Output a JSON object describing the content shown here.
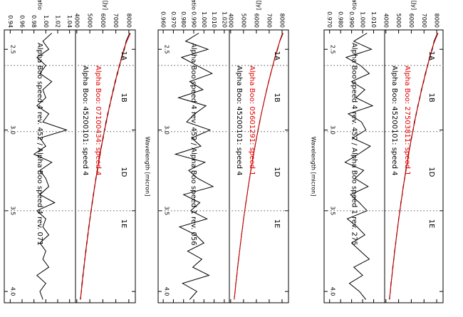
{
  "chart_data": [
    {
      "type": "line",
      "x": [
        2.4,
        2.45,
        2.5,
        2.55,
        2.6,
        2.65,
        2.7,
        2.75,
        2.8,
        2.85,
        2.9,
        2.95,
        3.0,
        3.05,
        3.1,
        3.15,
        3.2,
        3.25,
        3.3,
        3.35,
        3.4,
        3.45,
        3.5,
        3.55,
        3.6,
        3.65,
        3.7,
        3.75,
        3.8,
        3.85,
        3.9,
        3.95,
        4.0,
        4.05
      ],
      "xlim": [
        2.38,
        4.07
      ],
      "xticks": [
        2.5,
        {
          "value": 3.0,
          "label": "3.0"
        },
        3.5,
        {
          "value": 4.0,
          "label": "4.0"
        }
      ],
      "band_edges": [
        2.6,
        3.01,
        3.5
      ],
      "band_labels": [
        {
          "label": "1A",
          "x": 2.54
        },
        {
          "label": "1B",
          "x": 2.8
        },
        {
          "label": "1D",
          "x": 3.26
        },
        {
          "label": "1E",
          "x": 3.58
        }
      ],
      "flux": {
        "ylabel": "Flux [Jy]",
        "ylim": [
          3900,
          8500
        ],
        "yticks": [
          4000,
          5000,
          6000,
          7000,
          8000
        ],
        "series": [
          {
            "name": "Alpha Boo: 45200101: speed 4",
            "color": "#000000",
            "values": [
              8060,
              7790,
              7660,
              7430,
              7300,
              7100,
              6980,
              6790,
              6680,
              6510,
              6400,
              6240,
              6150,
              6000,
              5910,
              5770,
              5690,
              5560,
              5480,
              5360,
              5290,
              5175,
              5110,
              5000,
              4940,
              4835,
              4780,
              4680,
              4630,
              4535,
              4490,
              4395,
              4355,
              4265
            ]
          },
          {
            "name": "Alpha Boo: 07100434: speed 4",
            "color": "#e00000",
            "values": [
              8130,
              7850,
              7600,
              7490,
              7250,
              7150,
              6930,
              6840,
              6640,
              6550,
              6360,
              6290,
              6110,
              6040,
              5870,
              5810,
              5660,
              5600,
              5450,
              5390,
              5260,
              5210,
              5080,
              5030,
              4910,
              4870,
              4750,
              4715,
              4600,
              4570,
              4455,
              4430,
              4330,
              4300
            ]
          }
        ]
      },
      "ratio": {
        "ylabel": "Flux−ratio",
        "ylim": [
          0.93,
          1.05
        ],
        "yticks": [
          0.94,
          0.96,
          0.98,
          {
            "value": 1.0,
            "label": "1.00"
          },
          1.02,
          1.04
        ],
        "series": [
          {
            "name": "Alpha Boo speed 4 rev. 452 / Alpha Boo speed 4 rev. 071",
            "color": "#000000",
            "values": [
              1.01,
              0.995,
              1.005,
              0.985,
              1.0,
              0.99,
              1.01,
              0.995,
              1.0,
              0.985,
              1.005,
              0.995,
              1.035,
              0.99,
              1.0,
              0.98,
              1.01,
              0.99,
              1.0,
              1.005,
              0.99,
              1.015,
              0.985,
              1.0,
              0.995,
              1.005,
              0.99,
              1.0,
              0.995,
              1.005,
              0.985,
              1.0,
              0.99,
              0.995
            ]
          }
        ]
      }
    },
    {
      "type": "line",
      "x": [
        2.4,
        2.45,
        2.5,
        2.55,
        2.6,
        2.65,
        2.7,
        2.75,
        2.8,
        2.85,
        2.9,
        2.95,
        3.0,
        3.05,
        3.1,
        3.15,
        3.2,
        3.25,
        3.3,
        3.35,
        3.4,
        3.45,
        3.5,
        3.55,
        3.6,
        3.65,
        3.7,
        3.75,
        3.8,
        3.85,
        3.9,
        3.95,
        4.0,
        4.05
      ],
      "xlim": [
        2.38,
        4.07
      ],
      "xticks": [
        2.5,
        {
          "value": 3.0,
          "label": "3.0"
        },
        3.5,
        {
          "value": 4.0,
          "label": "4.0"
        }
      ],
      "xlabel": "Wavelength [micron]",
      "band_edges": [
        2.6,
        3.01,
        3.5
      ],
      "band_labels": [
        {
          "label": "1A",
          "x": 2.54
        },
        {
          "label": "1B",
          "x": 2.8
        },
        {
          "label": "1D",
          "x": 3.26
        },
        {
          "label": "1E",
          "x": 3.58
        }
      ],
      "flux": {
        "ylabel": "Flux [Jy]",
        "ylim": [
          3900,
          8500
        ],
        "yticks": [
          4000,
          5000,
          6000,
          7000,
          8000
        ],
        "series": [
          {
            "name": "Alpha Boo: 45200101: speed 4",
            "color": "#000000",
            "values": [
              8040,
              7810,
              7650,
              7440,
              7290,
              7110,
              6970,
              6800,
              6670,
              6520,
              6390,
              6250,
              6140,
              6010,
              5900,
              5780,
              5680,
              5565,
              5475,
              5370,
              5285,
              5180,
              5105,
              5005,
              4935,
              4840,
              4775,
              4690,
              4625,
              4540,
              4485,
              4400,
              4350,
              4270
            ]
          },
          {
            "name": "Alpha Boo: 05601291: speed 1",
            "color": "#e00000",
            "values": [
              8090,
              7830,
              7620,
              7470,
              7270,
              7130,
              6950,
              6820,
              6655,
              6530,
              6375,
              6270,
              6125,
              6020,
              5885,
              5795,
              5670,
              5580,
              5465,
              5380,
              5275,
              5195,
              5090,
              5015,
              4925,
              4855,
              4765,
              4700,
              4610,
              4555,
              4470,
              4415,
              4340,
              4285
            ]
          }
        ]
      },
      "ratio": {
        "ylabel": "Flux−ratio",
        "ylim": [
          0.955,
          1.025
        ],
        "yticks": [
          {
            "value": 0.96,
            "label": "0.960"
          },
          {
            "value": 0.97,
            "label": "0.970"
          },
          {
            "value": 0.98,
            "label": "0.980"
          },
          {
            "value": 0.99,
            "label": "0.990"
          },
          {
            "value": 1.0,
            "label": "1.000"
          },
          {
            "value": 1.01,
            "label": "1.010"
          },
          {
            "value": 1.02,
            "label": "1.020"
          }
        ],
        "series": [
          {
            "name": "Alpha Boo speed 4 rev. 452 / Alpha Boo speed 1 rev. 056",
            "color": "#000000",
            "values": [
              0.995,
              0.982,
              1.004,
              0.978,
              0.993,
              1.008,
              0.986,
              0.999,
              0.975,
              1.002,
              0.991,
              0.983,
              1.006,
              0.988,
              0.997,
              0.972,
              1.001,
              0.985,
              0.994,
              1.009,
              0.98,
              0.996,
              0.987,
              1.003,
              0.976,
              0.992,
              1.0,
              0.984,
              0.998,
              0.989,
              1.005,
              0.979,
              0.993,
              0.986
            ]
          }
        ]
      }
    },
    {
      "type": "line",
      "x": [
        2.4,
        2.45,
        2.5,
        2.55,
        2.6,
        2.65,
        2.7,
        2.75,
        2.8,
        2.85,
        2.9,
        2.95,
        3.0,
        3.05,
        3.1,
        3.15,
        3.2,
        3.25,
        3.3,
        3.35,
        3.4,
        3.45,
        3.5,
        3.55,
        3.6,
        3.65,
        3.7,
        3.75,
        3.8,
        3.85,
        3.9,
        3.95,
        4.0,
        4.05
      ],
      "xlim": [
        2.38,
        4.07
      ],
      "xticks": [
        2.5,
        {
          "value": 3.0,
          "label": "3.0"
        },
        3.5,
        {
          "value": 4.0,
          "label": "4.0"
        }
      ],
      "xlabel": "Wavelength [micron]",
      "band_edges": [
        2.6,
        3.01,
        3.5
      ],
      "band_labels": [
        {
          "label": "1A",
          "x": 2.54
        },
        {
          "label": "1B",
          "x": 2.8
        },
        {
          "label": "1D",
          "x": 3.26
        },
        {
          "label": "1E",
          "x": 3.58
        }
      ],
      "flux": {
        "ylabel": "Flux [Jy]",
        "ylim": [
          3900,
          8500
        ],
        "yticks": [
          4000,
          5000,
          6000,
          7000,
          8000
        ],
        "series": [
          {
            "name": "Alpha Boo: 45200101: speed 4",
            "color": "#000000",
            "values": [
              8060,
              7790,
              7660,
              7430,
              7300,
              7100,
              6980,
              6790,
              6680,
              6510,
              6400,
              6240,
              6150,
              6000,
              5910,
              5770,
              5690,
              5560,
              5480,
              5360,
              5290,
              5175,
              5110,
              5000,
              4940,
              4835,
              4780,
              4680,
              4630,
              4535,
              4490,
              4395,
              4355,
              4265
            ]
          },
          {
            "name": "Alpha Boo: 27503811: speed 1",
            "color": "#e00000",
            "values": [
              8110,
              7840,
              7610,
              7480,
              7260,
              7140,
              6940,
              6830,
              6650,
              6540,
              6370,
              6280,
              6120,
              6030,
              5880,
              5800,
              5665,
              5590,
              5460,
              5385,
              5270,
              5200,
              5085,
              5020,
              4920,
              4860,
              4760,
              4705,
              4605,
              4560,
              4465,
              4420,
              4335,
              4290
            ]
          }
        ]
      },
      "ratio": {
        "ylabel": "Flux−ratio",
        "ylim": [
          0.965,
          1.02
        ],
        "yticks": [
          {
            "value": 0.97,
            "label": "0.970"
          },
          {
            "value": 0.98,
            "label": "0.980"
          },
          {
            "value": 0.99,
            "label": "0.990"
          },
          {
            "value": 1.0,
            "label": "1.000"
          },
          {
            "value": 1.01,
            "label": "1.010"
          }
        ],
        "series": [
          {
            "name": "Alpha Boo speed 4 rev. 452 / Alpha Boo speed 1 rev. 275",
            "color": "#000000",
            "values": [
              1.004,
              0.992,
              1.008,
              0.985,
              0.998,
              1.006,
              0.99,
              1.002,
              0.994,
              1.009,
              0.987,
              0.999,
              1.003,
              0.991,
              1.007,
              0.996,
              0.984,
              1.001,
              0.993,
              1.005,
              0.989,
              0.997,
              1.004,
              0.986,
              0.995,
              1.002,
              0.99,
              0.998,
              1.006,
              0.992,
              1.0,
              0.988,
              0.997,
              1.003
            ]
          }
        ]
      }
    }
  ]
}
